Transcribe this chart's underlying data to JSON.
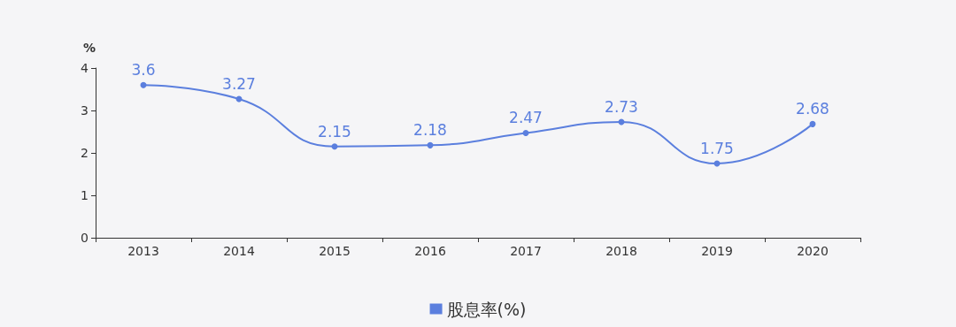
{
  "chart_data": {
    "type": "line",
    "ylabel": "%",
    "categories": [
      "2013",
      "2014",
      "2015",
      "2016",
      "2017",
      "2018",
      "2019",
      "2020"
    ],
    "series": [
      {
        "name": "股息率(%)",
        "color": "#5b7fde",
        "values": [
          3.6,
          3.27,
          2.15,
          2.18,
          2.47,
          2.73,
          1.75,
          2.68
        ]
      }
    ],
    "ylim": [
      0,
      4
    ],
    "yticks": [
      0,
      1,
      2,
      3,
      4
    ],
    "grid": false,
    "legend": "bottom",
    "data_labels": true,
    "marker": "circle",
    "line_style": "solid"
  }
}
